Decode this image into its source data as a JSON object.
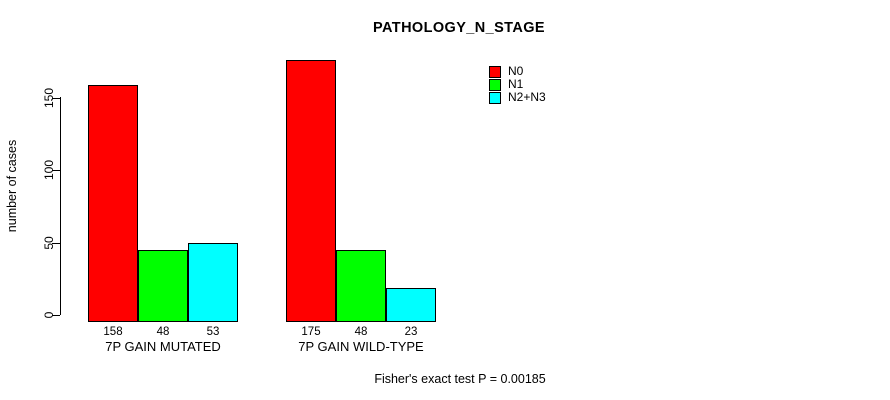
{
  "title": "PATHOLOGY_N_STAGE",
  "y_axis": {
    "label": "number of cases",
    "ticks": [
      0,
      50,
      100,
      150
    ]
  },
  "x_axis": {
    "categories": [
      "7P GAIN MUTATED",
      "7P GAIN WILD-TYPE"
    ]
  },
  "legend": {
    "items": [
      {
        "label": "N0",
        "color": "#ff0000"
      },
      {
        "label": "N1",
        "color": "#00ff00"
      },
      {
        "label": "N2+N3",
        "color": "#00ffff"
      }
    ]
  },
  "footnote": "Fisher's exact test P = 0.00185",
  "chart_data": {
    "type": "bar",
    "title": "PATHOLOGY_N_STAGE",
    "categories": [
      "7P GAIN MUTATED",
      "7P GAIN WILD-TYPE"
    ],
    "series": [
      {
        "name": "N0",
        "color": "#ff0000",
        "values": [
          158,
          175
        ]
      },
      {
        "name": "N1",
        "color": "#00ff00",
        "values": [
          48,
          48
        ]
      },
      {
        "name": "N2+N3",
        "color": "#00ffff",
        "values": [
          53,
          23
        ]
      }
    ],
    "bar_value_labels": true,
    "xlabel": "",
    "ylabel": "number of cases",
    "ylim": [
      0,
      183
    ],
    "yticks": [
      0,
      50,
      100,
      150
    ],
    "grid": false,
    "legend_position": "top-right",
    "annotation": "Fisher's exact test P = 0.00185"
  }
}
